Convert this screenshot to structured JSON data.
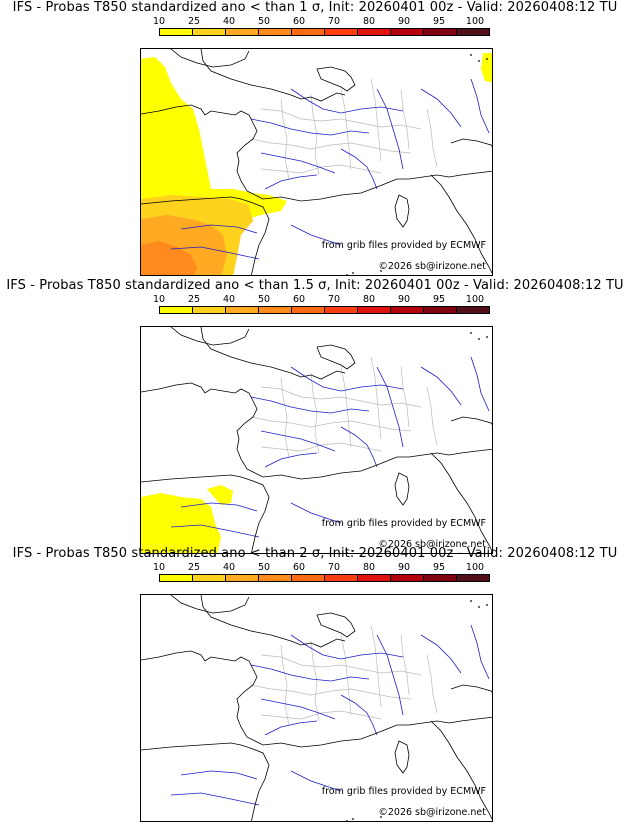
{
  "colors": {
    "scale": [
      "#ffff00",
      "#ffd21e",
      "#ffaa22",
      "#ff8a1e",
      "#ff6a14",
      "#ff3f10",
      "#e1130f",
      "#b4000a",
      "#800010",
      "#501018"
    ],
    "border": "#000000",
    "admin": "#bbbbbb",
    "river": "#1e1ecc"
  },
  "colorbar": {
    "ticks": [
      "10",
      "25",
      "40",
      "50",
      "60",
      "70",
      "80",
      "90",
      "95",
      "100"
    ]
  },
  "panels": [
    {
      "title": "IFS - Probas T850  standardized ano < than 1 σ, Init: 20260401 00z - Valid: 20260408:12 TU",
      "credit_source": "from grib files provided by ECMWF",
      "credit_copyright": "©2026 sb@irizone.net",
      "shading_level": 3
    },
    {
      "title": "IFS - Probas T850  standardized ano < than 1.5 σ, Init: 20260401 00z - Valid: 20260408:12 TU",
      "credit_source": "from grib files provided by ECMWF",
      "credit_copyright": "©2026 sb@irizone.net",
      "shading_level": 1
    },
    {
      "title": "IFS - Probas T850  standardized ano < than 2 σ, Init: 20260401 00z - Valid: 20260408:12 TU",
      "credit_source": "from grib files provided by ECMWF",
      "credit_copyright": "©2026 sb@irizone.net",
      "shading_level": 0
    }
  ]
}
